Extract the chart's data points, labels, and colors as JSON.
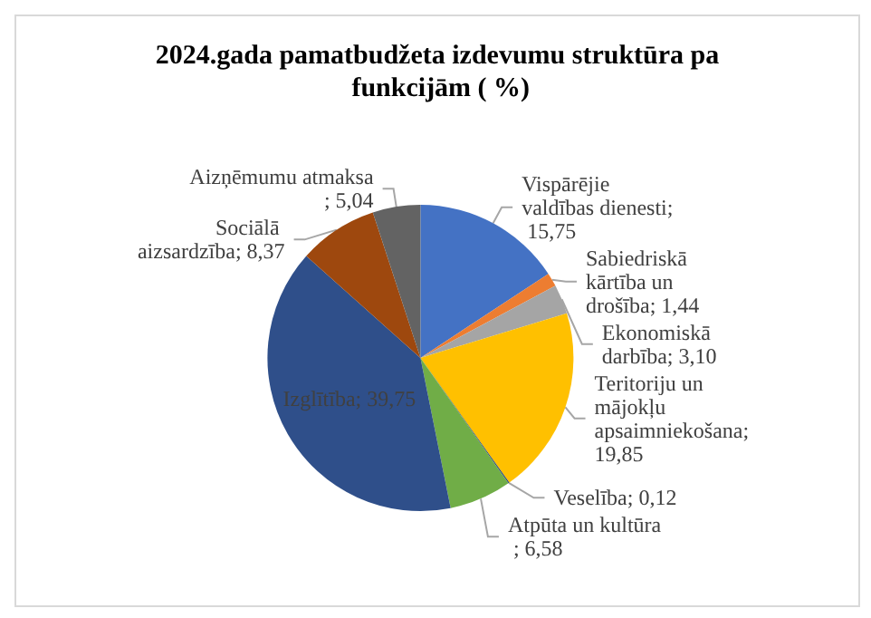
{
  "chart_data": {
    "type": "pie",
    "title": "2024.gada pamatbudžeta izdevumu struktūra pa funkcijām ( %)",
    "categories": [
      "Vispārējie valdības dienesti",
      "Sabiedriskā kārtība un drošība",
      "Ekonomiskā darbība",
      "Teritoriju un mājokļu apsaimniekošana",
      "Veselība",
      "Atpūta un kultūra ",
      "Izglītība",
      "Sociālā aizsardzība",
      "Aizņēmumu atmaksa"
    ],
    "values": [
      15.75,
      1.44,
      3.1,
      19.85,
      0.12,
      6.58,
      39.75,
      8.37,
      5.04
    ],
    "value_labels": [
      "; 15,75",
      "; 1,44",
      "; 3,10",
      "; 19,85",
      "; 0,12",
      "; 6,58",
      "; 39,75",
      "; 8,37",
      "; 5,04"
    ],
    "colors": [
      "#4472c4",
      "#ed7d31",
      "#a5a5a5",
      "#ffc000",
      "#264478",
      "#70ad47",
      "#2f4f8a",
      "#9e480e",
      "#636363"
    ],
    "legend": false
  }
}
